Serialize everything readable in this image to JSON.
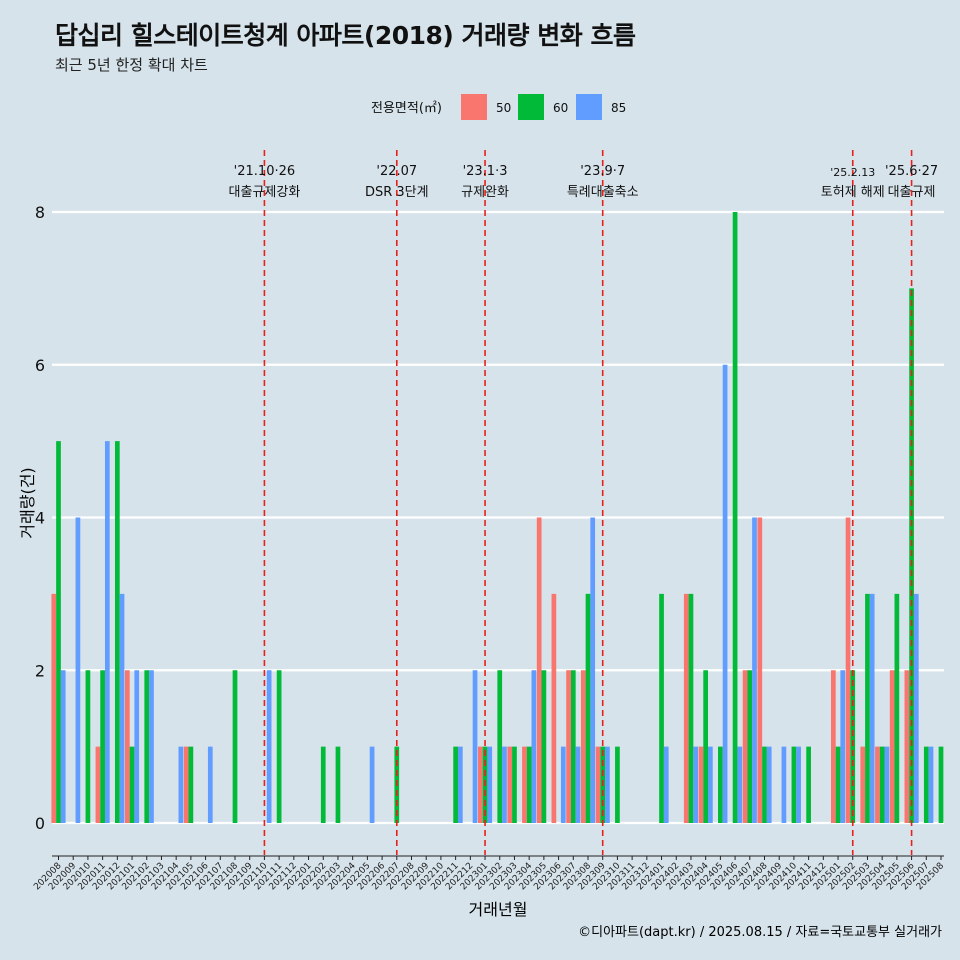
{
  "chart_data": {
    "type": "bar",
    "title": "답십리 힐스테이트청계 아파트(2018) 거래량 변화 흐름",
    "subtitle": "최근 5년 한정 확대 차트",
    "xlabel": "거래년월",
    "ylabel": "거래량(건)",
    "ylim": [
      0,
      8
    ],
    "yticks": [
      0,
      2,
      4,
      6,
      8
    ],
    "grid": true,
    "legend": {
      "title": "전용면적(㎡)",
      "position": "top",
      "entries": [
        "50",
        "60",
        "85"
      ]
    },
    "colors": {
      "50": "#f8766d",
      "60": "#00ba38",
      "85": "#619cff"
    },
    "categories": [
      "202008",
      "202009",
      "202010",
      "202011",
      "202012",
      "202101",
      "202102",
      "202103",
      "202104",
      "202105",
      "202106",
      "202107",
      "202108",
      "202109",
      "202110",
      "202111",
      "202112",
      "202201",
      "202202",
      "202203",
      "202204",
      "202205",
      "202206",
      "202207",
      "202208",
      "202209",
      "202210",
      "202211",
      "202212",
      "202301",
      "202302",
      "202303",
      "202304",
      "202305",
      "202306",
      "202307",
      "202308",
      "202309",
      "202310",
      "202311",
      "202312",
      "202401",
      "202402",
      "202403",
      "202404",
      "202405",
      "202406",
      "202407",
      "202408",
      "202409",
      "202410",
      "202411",
      "202412",
      "202501",
      "202502",
      "202503",
      "202504",
      "202505",
      "202506",
      "202507",
      "202508"
    ],
    "series": [
      {
        "name": "50",
        "values": [
          3,
          0,
          0,
          1,
          0,
          2,
          0,
          0,
          0,
          1,
          0,
          0,
          0,
          0,
          0,
          0,
          0,
          0,
          0,
          0,
          0,
          0,
          0,
          0,
          0,
          0,
          0,
          0,
          0,
          1,
          0,
          1,
          1,
          4,
          3,
          2,
          2,
          1,
          0,
          0,
          0,
          0,
          0,
          3,
          1,
          0,
          0,
          2,
          4,
          0,
          0,
          0,
          0,
          2,
          4,
          1,
          1,
          2,
          2,
          0,
          0
        ]
      },
      {
        "name": "60",
        "values": [
          5,
          0,
          2,
          2,
          5,
          1,
          2,
          0,
          0,
          1,
          0,
          0,
          2,
          0,
          0,
          2,
          0,
          0,
          1,
          1,
          0,
          0,
          0,
          1,
          0,
          0,
          0,
          1,
          0,
          1,
          2,
          1,
          1,
          2,
          0,
          2,
          3,
          1,
          1,
          0,
          0,
          3,
          0,
          3,
          2,
          1,
          8,
          2,
          1,
          0,
          1,
          1,
          0,
          1,
          2,
          3,
          1,
          3,
          7,
          1,
          1
        ]
      },
      {
        "name": "85",
        "values": [
          2,
          4,
          0,
          5,
          3,
          2,
          2,
          0,
          1,
          0,
          1,
          0,
          0,
          0,
          2,
          0,
          0,
          0,
          0,
          0,
          0,
          1,
          0,
          0,
          0,
          0,
          0,
          1,
          2,
          1,
          1,
          0,
          2,
          0,
          1,
          1,
          4,
          1,
          0,
          0,
          0,
          1,
          0,
          1,
          1,
          6,
          1,
          4,
          1,
          1,
          1,
          0,
          0,
          2,
          0,
          3,
          1,
          0,
          3,
          1,
          0
        ]
      }
    ],
    "annotations": [
      {
        "date": "'21.10·26",
        "label": "대출규제강화",
        "month": "202110"
      },
      {
        "date": "'22.07",
        "label": "DSR 3단계",
        "month": "202207"
      },
      {
        "date": "'23.1·3",
        "label": "규제완화",
        "month": "202301"
      },
      {
        "date": "'23.9·7",
        "label": "특례대출축소",
        "month": "202309"
      },
      {
        "date": "'25.2.13",
        "label": "토허제 해제",
        "month": "202502"
      },
      {
        "date": "'25.6·27",
        "label": "대출규제",
        "month": "202506"
      }
    ]
  },
  "caption": "©디아파트(dapt.kr) / 2025.08.15 / 자료=국토교통부 실거래가"
}
